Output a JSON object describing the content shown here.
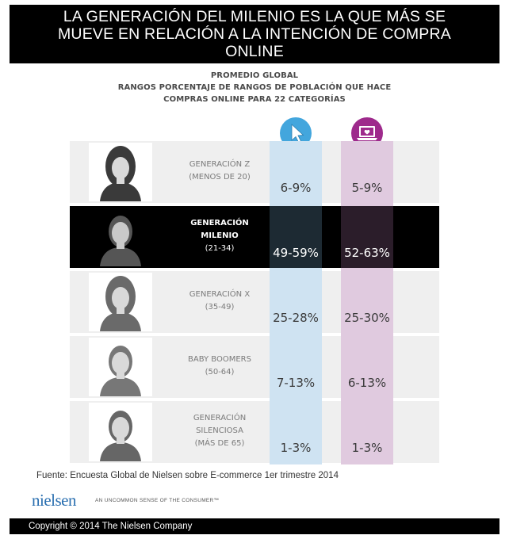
{
  "title": {
    "line1": "LA GENERACIÓN DEL MILENIO ES LA QUE MÁS SE",
    "line2": "MUEVE EN RELACIÓN A LA INTENCIÓN DE COMPRA",
    "line3": "ONLINE"
  },
  "subhead": {
    "line1": "PROMEDIO GLOBAL",
    "line2": "RANGOS PORCENTAJE DE RANGOS DE POBLACIÓN QUE HACE",
    "line3": "COMPRAS ONLINE PARA 22 CATEGORÍAS"
  },
  "icons": {
    "col_a": "cursor-arrow-icon",
    "col_b": "laptop-heart-icon",
    "col_a_color": "#43a6dd",
    "col_b_color": "#9e2a8c"
  },
  "colors": {
    "col_a_bg": "#cfe3f2",
    "col_b_bg": "#e0cadf",
    "row_bg": "#efefef",
    "highlight_row": "#000000",
    "brand": "#2a6fb0"
  },
  "chart_data": {
    "type": "table",
    "title": "PROMEDIO GLOBAL",
    "columns": [
      "cursor-arrow-icon",
      "laptop-heart-icon"
    ],
    "rows": [
      {
        "label": [
          "GENERACIÓN Z",
          "(MENOS DE 20)"
        ],
        "values": [
          "6-9%",
          "5-9%"
        ],
        "highlight": false
      },
      {
        "label": [
          "GENERACIÓN",
          "MILENIO",
          "(21-34)"
        ],
        "values": [
          "49-59%",
          "52-63%"
        ],
        "highlight": true
      },
      {
        "label": [
          "GENERACIÓN X",
          "(35-49)"
        ],
        "values": [
          "25-28%",
          "25-30%"
        ],
        "highlight": false
      },
      {
        "label": [
          "BABY BOOMERS",
          "(50-64)"
        ],
        "values": [
          "7-13%",
          "6-13%"
        ],
        "highlight": false
      },
      {
        "label": [
          "GENERACIÓN",
          "SILENCIOSA",
          "(MÁS DE 65)"
        ],
        "values": [
          "1-3%",
          "1-3%"
        ],
        "highlight": false
      }
    ]
  },
  "source": "Fuente:  Encuesta Global de Nielsen sobre E-commerce 1er trimestre 2014",
  "logo": {
    "name": "nielsen",
    "tagline": "AN UNCOMMON SENSE OF THE CONSUMER™"
  },
  "copyright": "Copyright © 2014 The Nielsen Company"
}
